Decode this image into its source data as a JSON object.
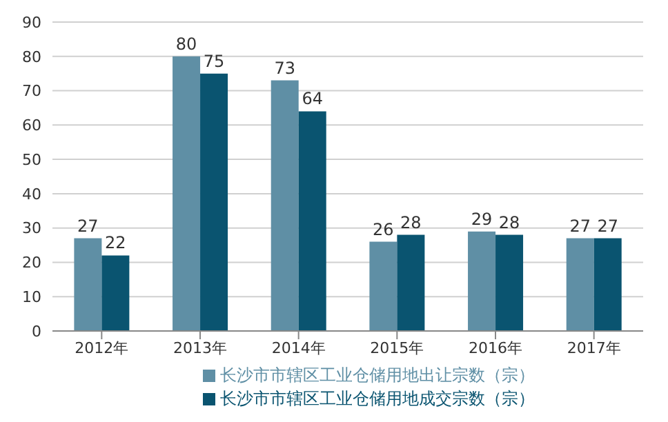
{
  "chart_data": {
    "type": "bar",
    "categories": [
      "2012年",
      "2013年",
      "2014年",
      "2015年",
      "2016年",
      "2017年"
    ],
    "series": [
      {
        "name": "长沙市市辖区工业仓储用地出让宗数（宗）",
        "color": "#5f8fa5",
        "values": [
          27,
          80,
          73,
          26,
          29,
          27
        ]
      },
      {
        "name": "长沙市市辖区工业仓储用地成交宗数（宗）",
        "color": "#0a5470",
        "values": [
          22,
          75,
          64,
          28,
          28,
          27
        ]
      }
    ],
    "ylim": [
      0,
      90
    ],
    "yticks": [
      0,
      10,
      20,
      30,
      40,
      50,
      60,
      70,
      80,
      90
    ],
    "grid": "y",
    "legend": "bottom",
    "data_labels": true
  }
}
